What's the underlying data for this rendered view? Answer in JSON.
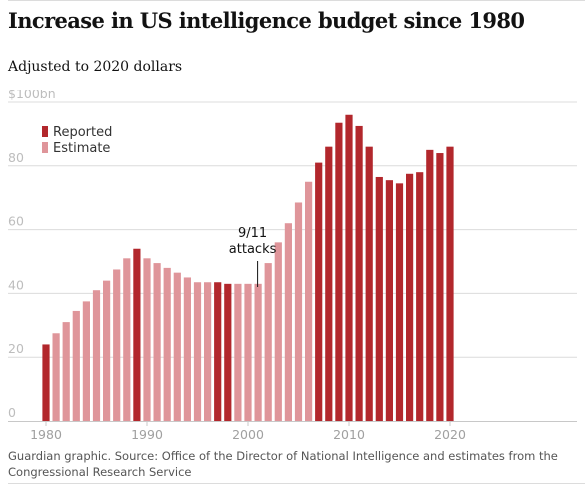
{
  "header": {
    "title": "Increase in US intelligence budget since 1980",
    "subtitle": "Adjusted to 2020 dollars"
  },
  "footer": {
    "source": "Guardian graphic. Source: Office of the Director of National Intelligence and estimates from the Congressional Research Service"
  },
  "colors": {
    "reported": "#b2272c",
    "estimate": "#df959a",
    "gridline": "#dcdcdc",
    "axis": "#c8c8c8"
  },
  "chart_data": {
    "type": "bar",
    "title": "Increase in US intelligence budget since 1980",
    "subtitle": "Adjusted to 2020 dollars",
    "xlabel": "",
    "ylabel": "",
    "ylim": [
      0,
      100
    ],
    "yticks": [
      {
        "value": 0,
        "label": "0"
      },
      {
        "value": 20,
        "label": "20"
      },
      {
        "value": 40,
        "label": "40"
      },
      {
        "value": 60,
        "label": "60"
      },
      {
        "value": 80,
        "label": "80"
      },
      {
        "value": 100,
        "label": "$100bn"
      }
    ],
    "xticks": [
      {
        "value": 1980,
        "label": "1980"
      },
      {
        "value": 1990,
        "label": "1990"
      },
      {
        "value": 2000,
        "label": "2000"
      },
      {
        "value": 2010,
        "label": "2010"
      },
      {
        "value": 2020,
        "label": "2020"
      }
    ],
    "grid": true,
    "legend": {
      "placement": "top-left",
      "entries": [
        {
          "key": "reported",
          "label": "Reported"
        },
        {
          "key": "estimate",
          "label": "Estimate"
        }
      ]
    },
    "annotations": [
      {
        "x": 2001,
        "lines": [
          "9/11",
          "attacks"
        ]
      }
    ],
    "bars": [
      {
        "x": 1980,
        "value": 24,
        "kind": "reported"
      },
      {
        "x": 1981,
        "value": 27.5,
        "kind": "estimate"
      },
      {
        "x": 1982,
        "value": 31,
        "kind": "estimate"
      },
      {
        "x": 1983,
        "value": 34.5,
        "kind": "estimate"
      },
      {
        "x": 1984,
        "value": 37.5,
        "kind": "estimate"
      },
      {
        "x": 1985,
        "value": 41,
        "kind": "estimate"
      },
      {
        "x": 1986,
        "value": 44,
        "kind": "estimate"
      },
      {
        "x": 1987,
        "value": 47.5,
        "kind": "estimate"
      },
      {
        "x": 1988,
        "value": 51,
        "kind": "estimate"
      },
      {
        "x": 1989,
        "value": 54,
        "kind": "reported"
      },
      {
        "x": 1990,
        "value": 51,
        "kind": "estimate"
      },
      {
        "x": 1991,
        "value": 49.5,
        "kind": "estimate"
      },
      {
        "x": 1992,
        "value": 48,
        "kind": "estimate"
      },
      {
        "x": 1993,
        "value": 46.5,
        "kind": "estimate"
      },
      {
        "x": 1994,
        "value": 45,
        "kind": "estimate"
      },
      {
        "x": 1995,
        "value": 43.5,
        "kind": "estimate"
      },
      {
        "x": 1996,
        "value": 43.5,
        "kind": "estimate"
      },
      {
        "x": 1997,
        "value": 43.5,
        "kind": "reported"
      },
      {
        "x": 1998,
        "value": 43,
        "kind": "reported"
      },
      {
        "x": 1999,
        "value": 43,
        "kind": "estimate"
      },
      {
        "x": 2000,
        "value": 43,
        "kind": "estimate"
      },
      {
        "x": 2001,
        "value": 43,
        "kind": "estimate"
      },
      {
        "x": 2002,
        "value": 49.5,
        "kind": "estimate"
      },
      {
        "x": 2003,
        "value": 56,
        "kind": "estimate"
      },
      {
        "x": 2004,
        "value": 62,
        "kind": "estimate"
      },
      {
        "x": 2005,
        "value": 68.5,
        "kind": "estimate"
      },
      {
        "x": 2006,
        "value": 75,
        "kind": "estimate"
      },
      {
        "x": 2007,
        "value": 81,
        "kind": "reported"
      },
      {
        "x": 2008,
        "value": 86,
        "kind": "reported"
      },
      {
        "x": 2009,
        "value": 93.5,
        "kind": "reported"
      },
      {
        "x": 2010,
        "value": 96,
        "kind": "reported"
      },
      {
        "x": 2011,
        "value": 92.5,
        "kind": "reported"
      },
      {
        "x": 2012,
        "value": 86,
        "kind": "reported"
      },
      {
        "x": 2013,
        "value": 76.5,
        "kind": "reported"
      },
      {
        "x": 2014,
        "value": 75.5,
        "kind": "reported"
      },
      {
        "x": 2015,
        "value": 74.5,
        "kind": "reported"
      },
      {
        "x": 2016,
        "value": 77.5,
        "kind": "reported"
      },
      {
        "x": 2017,
        "value": 78,
        "kind": "reported"
      },
      {
        "x": 2018,
        "value": 85,
        "kind": "reported"
      },
      {
        "x": 2019,
        "value": 84,
        "kind": "reported"
      },
      {
        "x": 2020,
        "value": 86,
        "kind": "reported"
      }
    ]
  }
}
